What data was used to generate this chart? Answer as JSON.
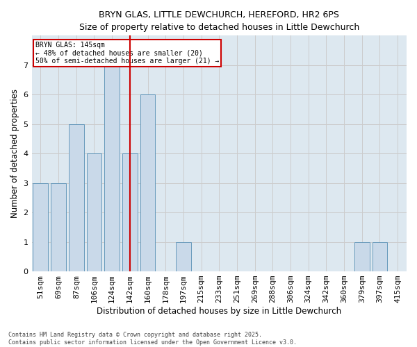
{
  "title1": "BRYN GLAS, LITTLE DEWCHURCH, HEREFORD, HR2 6PS",
  "title2": "Size of property relative to detached houses in Little Dewchurch",
  "xlabel": "Distribution of detached houses by size in Little Dewchurch",
  "ylabel": "Number of detached properties",
  "categories": [
    "51sqm",
    "69sqm",
    "87sqm",
    "106sqm",
    "124sqm",
    "142sqm",
    "160sqm",
    "178sqm",
    "197sqm",
    "215sqm",
    "233sqm",
    "251sqm",
    "269sqm",
    "288sqm",
    "306sqm",
    "324sqm",
    "342sqm",
    "360sqm",
    "379sqm",
    "397sqm",
    "415sqm"
  ],
  "values": [
    3,
    3,
    5,
    4,
    7,
    4,
    6,
    0,
    1,
    0,
    0,
    0,
    0,
    0,
    0,
    0,
    0,
    0,
    1,
    1,
    0
  ],
  "bar_color": "#c9d9e9",
  "bar_edge_color": "#6699bb",
  "grid_color": "#cccccc",
  "background_color": "#dde8f0",
  "vline_color": "#cc0000",
  "vline_index": 5,
  "annotation_text": "BRYN GLAS: 145sqm\n← 48% of detached houses are smaller (20)\n50% of semi-detached houses are larger (21) →",
  "annotation_box_color": "#ffffff",
  "annotation_box_edge": "#cc0000",
  "footer": "Contains HM Land Registry data © Crown copyright and database right 2025.\nContains public sector information licensed under the Open Government Licence v3.0.",
  "ylim": [
    0,
    8
  ],
  "yticks": [
    0,
    1,
    2,
    3,
    4,
    5,
    6,
    7,
    8
  ]
}
